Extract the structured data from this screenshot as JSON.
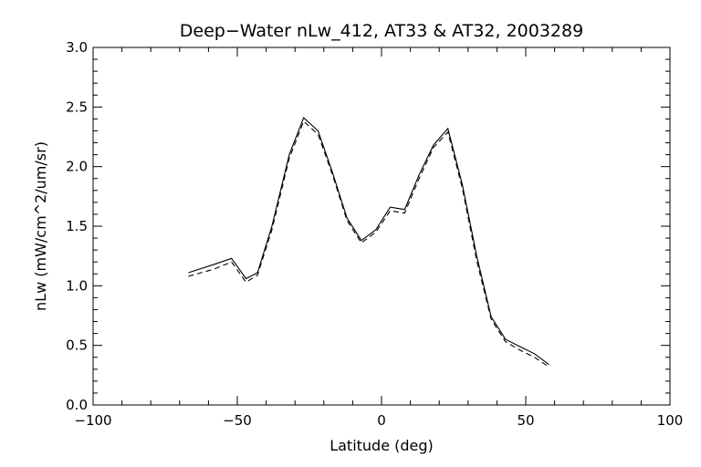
{
  "chart_data": {
    "type": "line",
    "title": "Deep−Water nLw_412, AT33 & AT32, 2003289",
    "xlabel": "Latitude (deg)",
    "ylabel": "nLw (mW/cm^2/um/sr)",
    "xlim": [
      -100,
      100
    ],
    "ylim": [
      0.0,
      3.0
    ],
    "x_ticks": [
      -100,
      -50,
      0,
      50,
      100
    ],
    "x_tick_labels": [
      "−100",
      "−50",
      "0",
      "50",
      "100"
    ],
    "y_ticks": [
      0.0,
      0.5,
      1.0,
      1.5,
      2.0,
      2.5,
      3.0
    ],
    "y_tick_labels": [
      "0.0",
      "0.5",
      "1.0",
      "1.5",
      "2.0",
      "2.5",
      "3.0"
    ],
    "grid": false,
    "series": [
      {
        "style": "solid",
        "x": [
          -67,
          -58,
          -52,
          -47,
          -43,
          -38,
          -32,
          -27,
          -22,
          -17,
          -12,
          -7,
          -2,
          3,
          8,
          13,
          18,
          23,
          28,
          33,
          38,
          43,
          48,
          53,
          58
        ],
        "y": [
          1.11,
          1.18,
          1.23,
          1.06,
          1.11,
          1.5,
          2.1,
          2.41,
          2.3,
          1.95,
          1.57,
          1.38,
          1.47,
          1.66,
          1.64,
          1.93,
          2.18,
          2.32,
          1.85,
          1.25,
          0.74,
          0.55,
          0.49,
          0.43,
          0.34
        ]
      },
      {
        "style": "dashed",
        "x": [
          -67,
          -58,
          -52,
          -47,
          -43,
          -38,
          -32,
          -27,
          -22,
          -17,
          -12,
          -7,
          -2,
          3,
          8,
          13,
          18,
          23,
          28,
          33,
          38,
          43,
          48,
          53,
          58
        ],
        "y": [
          1.08,
          1.14,
          1.2,
          1.03,
          1.09,
          1.47,
          2.07,
          2.38,
          2.27,
          1.93,
          1.55,
          1.36,
          1.45,
          1.63,
          1.61,
          1.9,
          2.16,
          2.29,
          1.82,
          1.21,
          0.72,
          0.53,
          0.46,
          0.4,
          0.32
        ]
      }
    ]
  }
}
